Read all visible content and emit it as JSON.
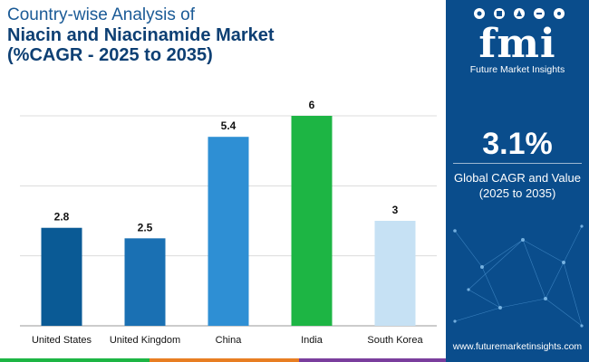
{
  "title": {
    "line1": "Country-wise Analysis of",
    "line2": "Niacin and Niacinamide Market",
    "line3": "(%CAGR - 2025 to 2035)"
  },
  "chart_data": {
    "type": "bar",
    "title": "Country-wise Analysis of Niacin and Niacinamide Market (%CAGR - 2025 to 2035)",
    "categories": [
      "United States",
      "United Kingdom",
      "China",
      "India",
      "South Korea"
    ],
    "values": [
      2.8,
      2.5,
      5.4,
      6,
      3
    ],
    "value_labels": [
      "2.8",
      "2.5",
      "5.4",
      "6",
      "3"
    ],
    "colors": [
      "#0a5a95",
      "#1a70b3",
      "#2e8fd4",
      "#1db544",
      "#c6e1f4"
    ],
    "xlabel": "",
    "ylabel": "",
    "ylim": [
      0,
      6
    ],
    "grid": true
  },
  "sidebar": {
    "logo_text": "fmi",
    "logo_subtitle": "Future Market Insights",
    "cagr_value": "3.1%",
    "cagr_label_line1": "Global CAGR and Value",
    "cagr_label_line2": "(2025 to 2035)",
    "website": "www.futuremarketinsights.com"
  },
  "footer_colors": [
    "#1db544",
    "#e87e22",
    "#7a3e9d",
    "#0a4d8c"
  ]
}
